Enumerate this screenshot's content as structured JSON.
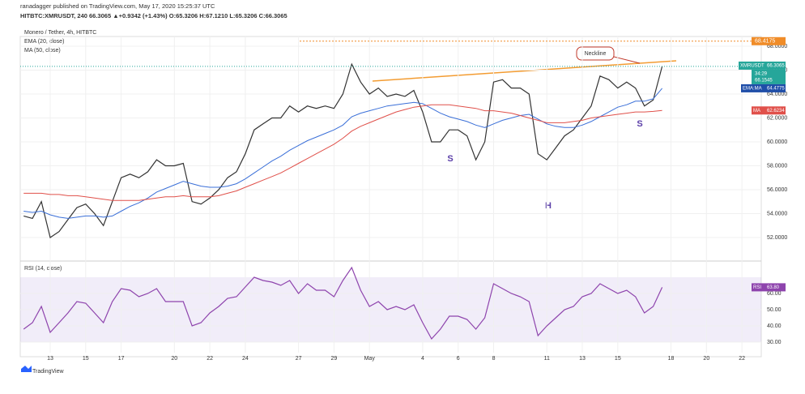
{
  "header": {
    "published": "ranadagger published on TradingView.com, May 17, 2020 15:25:37 UTC",
    "quote": "HITBTC:XMRUSDT, 240  66.3065  ▲+0.9342 (+1.43%) O:65.3206 H:67.1210 L:65.3206 C:66.3065"
  },
  "chart_data": [
    {
      "type": "line",
      "title": "Monero / Tether, 4h, HITBTC",
      "x": [
        11.5,
        12,
        12.5,
        13,
        13.5,
        14,
        14.5,
        15,
        15.5,
        16,
        16.5,
        17,
        17.5,
        18,
        18.5,
        19,
        19.5,
        20,
        20.5,
        21,
        21.5,
        22,
        22.5,
        23,
        23.5,
        24,
        24.5,
        25,
        25.5,
        26,
        26.5,
        27,
        27.5,
        28,
        28.5,
        29,
        29.5,
        30,
        30.5,
        31,
        31.5,
        32,
        32.5,
        33,
        33.5,
        34,
        34.5,
        35,
        35.5,
        36,
        36.5,
        37,
        37.5,
        38,
        38.5,
        39,
        39.5,
        40,
        40.5,
        41,
        41.5,
        42,
        42.5,
        43,
        43.5,
        44,
        44.5,
        45,
        45.5,
        46,
        46.5,
        47,
        47.5
      ],
      "series": [
        {
          "name": "XMRUSDT",
          "color": "#333333",
          "values": [
            53.8,
            53.6,
            55,
            52,
            52.5,
            53.5,
            54.5,
            54.8,
            54,
            53,
            55,
            57,
            57.3,
            57,
            57.5,
            58.5,
            58,
            58,
            58.2,
            55,
            54.8,
            55.3,
            56,
            57,
            57.5,
            59,
            61,
            61.5,
            62,
            62,
            63,
            62.5,
            63,
            62.8,
            63,
            62.8,
            64,
            66.5,
            65,
            64,
            64.5,
            63.8,
            64,
            63.8,
            64.3,
            62.5,
            60,
            60,
            61,
            61,
            60.5,
            58.5,
            60,
            65,
            65.2,
            64.5,
            64.5,
            64,
            59,
            58.5,
            59.5,
            60.5,
            61,
            62,
            63,
            65.5,
            65.2,
            64.5,
            65,
            64.5,
            63,
            63.5,
            66.3065
          ]
        },
        {
          "name": "EMA (20, close)",
          "color": "#3a6fd8",
          "values": [
            54.2,
            54.1,
            54.2,
            53.9,
            53.7,
            53.6,
            53.7,
            53.8,
            53.8,
            53.7,
            53.8,
            54.2,
            54.6,
            54.9,
            55.3,
            55.8,
            56.1,
            56.4,
            56.7,
            56.5,
            56.3,
            56.2,
            56.2,
            56.3,
            56.5,
            56.9,
            57.4,
            57.9,
            58.4,
            58.8,
            59.3,
            59.7,
            60.1,
            60.4,
            60.7,
            61,
            61.4,
            62.1,
            62.4,
            62.6,
            62.8,
            63,
            63.1,
            63.2,
            63.3,
            63.2,
            62.8,
            62.4,
            62.1,
            61.9,
            61.7,
            61.4,
            61.2,
            61.5,
            61.8,
            62,
            62.2,
            62.3,
            61.9,
            61.5,
            61.3,
            61.2,
            61.2,
            61.4,
            61.7,
            62.1,
            62.5,
            62.9,
            63.1,
            63.4,
            63.4,
            63.6,
            64.4775
          ]
        },
        {
          "name": "MA (50, close)",
          "color": "#e0504a",
          "values": [
            55.7,
            55.7,
            55.7,
            55.6,
            55.6,
            55.5,
            55.5,
            55.4,
            55.3,
            55.2,
            55.1,
            55.1,
            55.1,
            55.1,
            55.2,
            55.3,
            55.4,
            55.4,
            55.5,
            55.4,
            55.4,
            55.4,
            55.5,
            55.7,
            55.9,
            56.2,
            56.5,
            56.8,
            57.1,
            57.4,
            57.8,
            58.2,
            58.6,
            59,
            59.4,
            59.8,
            60.3,
            60.9,
            61.3,
            61.6,
            61.9,
            62.2,
            62.5,
            62.7,
            62.9,
            63,
            63.1,
            63.1,
            63.1,
            63,
            62.9,
            62.8,
            62.6,
            62.6,
            62.5,
            62.4,
            62.2,
            62,
            61.8,
            61.6,
            61.6,
            61.6,
            61.7,
            61.8,
            62,
            62.1,
            62.2,
            62.3,
            62.4,
            62.5,
            62.5,
            62.55,
            62.6234
          ]
        }
      ],
      "ylim": [
        50.17,
        68.81
      ],
      "yticks": [
        {
          "value": 52,
          "label": "52.0000"
        },
        {
          "value": 54,
          "label": "54.0000"
        },
        {
          "value": 56,
          "label": "56.0000"
        },
        {
          "value": 58,
          "label": "58.0000"
        },
        {
          "value": 60,
          "label": "60.0000"
        },
        {
          "value": 62,
          "label": "62.0000"
        },
        {
          "value": 64,
          "label": "64.0000"
        },
        {
          "value": 66,
          "label": "66.0000"
        },
        {
          "value": 68,
          "label": "68.0000"
        }
      ],
      "xlim": [
        11.31,
        53.09
      ],
      "xticks": [
        {
          "value": 13,
          "label": "13"
        },
        {
          "value": 15,
          "label": "15"
        },
        {
          "value": 17,
          "label": "17"
        },
        {
          "value": 20,
          "label": "20"
        },
        {
          "value": 22,
          "label": "22"
        },
        {
          "value": 24,
          "label": "24"
        },
        {
          "value": 27,
          "label": "27"
        },
        {
          "value": 29,
          "label": "29"
        },
        {
          "value": 31,
          "label": "May"
        },
        {
          "value": 34,
          "label": "4"
        },
        {
          "value": 36,
          "label": "6"
        },
        {
          "value": 38,
          "label": "8"
        },
        {
          "value": 41,
          "label": "11"
        },
        {
          "value": 43,
          "label": "13"
        },
        {
          "value": 45,
          "label": "15"
        },
        {
          "value": 48,
          "label": "18"
        },
        {
          "value": 50,
          "label": "20"
        },
        {
          "value": 52,
          "label": "22"
        }
      ],
      "high_line": {
        "value": 68.4175,
        "label": "68.4175",
        "color": "#f08c28"
      },
      "tags": {
        "symbol": "XMRUSDT",
        "countdown": "34:29",
        "other": "66.1545",
        "ema_ma": "EMA:MA",
        "ma": "MA"
      },
      "annotations": {
        "neckline": "Neckline",
        "left_shoulder": "S",
        "head": "H",
        "right_shoulder": "S"
      }
    },
    {
      "type": "line",
      "title": "RSI (14, close)",
      "series": [
        {
          "name": "RSI",
          "color": "#8e44ad",
          "values": [
            38,
            42,
            52,
            36,
            42,
            48,
            55,
            54,
            48,
            42,
            55,
            63,
            62,
            58,
            60,
            63,
            55,
            55,
            55,
            40,
            42,
            48,
            52,
            57,
            58,
            64,
            70,
            68,
            67,
            65,
            68,
            60,
            66,
            62,
            62,
            58,
            68,
            76,
            62,
            52,
            55,
            50,
            52,
            50,
            53,
            42,
            32,
            38,
            46,
            46,
            44,
            38,
            45,
            66,
            63,
            60,
            58,
            55,
            34,
            40,
            45,
            50,
            52,
            58,
            60,
            66,
            63,
            60,
            62,
            58,
            48,
            52,
            63.8
          ],
          "value_labels": [
            null,
            null,
            null,
            null,
            null,
            null,
            null,
            null,
            null,
            null,
            null,
            null,
            null,
            null,
            null,
            null,
            null,
            null,
            null,
            null,
            null,
            null,
            null,
            null,
            null,
            null,
            null,
            null,
            null,
            null,
            null,
            null,
            null,
            null,
            null,
            null,
            null,
            null,
            null,
            null,
            null,
            null,
            null,
            null,
            null,
            null,
            null,
            null,
            null,
            null,
            null,
            null,
            null,
            null,
            null,
            null,
            null,
            null,
            null,
            null,
            null,
            null,
            null,
            null,
            null,
            null,
            null,
            null,
            null,
            null,
            null,
            null,
            "63.80"
          ]
        }
      ],
      "ylim": [
        23.5,
        78.5
      ],
      "band": [
        30,
        70
      ],
      "yticks": [
        {
          "value": 30,
          "label": "30.00"
        },
        {
          "value": 40,
          "label": "40.00"
        },
        {
          "value": 50,
          "label": "50.00"
        },
        {
          "value": 60,
          "label": "60.00"
        }
      ]
    }
  ],
  "footer": "TradingView"
}
